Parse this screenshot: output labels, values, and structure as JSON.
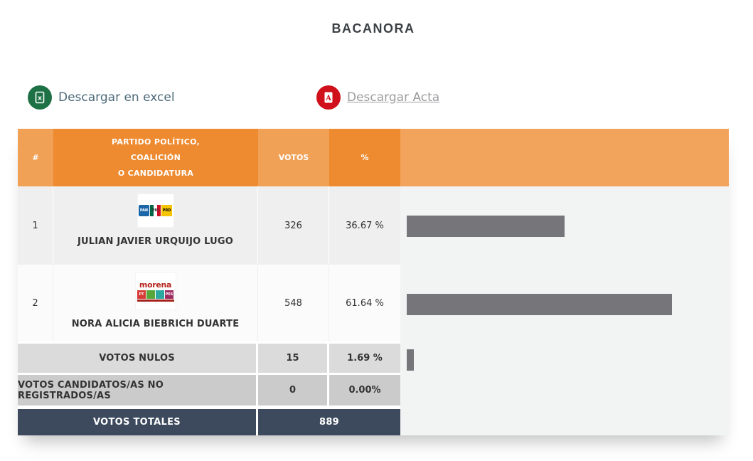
{
  "title": "BACANORA",
  "downloads": {
    "excel_label": "Descargar en excel",
    "acta_label": "Descargar Acta",
    "excel_icon_letter": "x",
    "pdf_icon_letter": "A"
  },
  "table": {
    "headers": {
      "num": "#",
      "party_line1": "PARTIDO POLÍTICO,",
      "party_line2": "COALICIÓN",
      "party_line3": "O CANDIDATURA",
      "votes": "VOTOS",
      "pct": "%"
    },
    "rows": [
      {
        "num": "1",
        "candidate": "JULIAN JAVIER URQUIJO LUGO",
        "coalition": {
          "pan": "PAN",
          "pri": "PRI",
          "prd": "PRD"
        },
        "votes": "326",
        "pct": "36.67 %"
      },
      {
        "num": "2",
        "candidate": "NORA ALICIA BIEBRICH DUARTE",
        "coalition": {
          "wordmark": "morena",
          "pt": "PT",
          "pes": "PES"
        },
        "votes": "548",
        "pct": "61.64 %"
      }
    ],
    "summary_rows": [
      {
        "label": "VOTOS NULOS",
        "votes": "15",
        "pct": "1.69 %"
      },
      {
        "label": "VOTOS CANDIDATOS/AS NO REGISTRADOS/AS",
        "votes": "0",
        "pct": "0.00%"
      }
    ],
    "total_row": {
      "label": "VOTOS TOTALES",
      "votes": "889"
    }
  },
  "chart_data": {
    "type": "bar",
    "orientation": "horizontal",
    "categories": [
      "JULIAN JAVIER URQUIJO LUGO",
      "NORA ALICIA BIEBRICH DUARTE",
      "VOTOS NULOS"
    ],
    "values": [
      36.67,
      61.64,
      1.69
    ],
    "votes": [
      326,
      548,
      15
    ],
    "unit": "%",
    "xlim": [
      0,
      100
    ],
    "grid": false,
    "legend": false,
    "bar_color": "#76767a",
    "plot_background": "#f2f3f3"
  },
  "colors": {
    "header_orange_light": "#f0a155",
    "header_orange_dark": "#ee8a2f",
    "chart_header_orange": "#f2a45c",
    "totals_navy": "#3d4a5d",
    "bar_gray": "#76767a",
    "excel_green": "#1e7145",
    "pdf_red": "#d0111b",
    "excel_link_text": "#4d6b7a",
    "acta_link_text": "#9d9da1"
  }
}
